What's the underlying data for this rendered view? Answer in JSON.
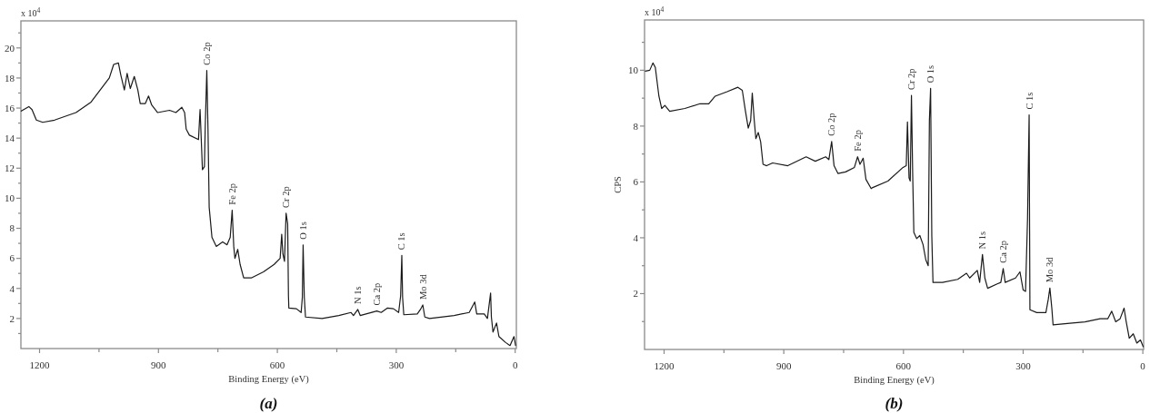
{
  "chart_data": [
    {
      "type": "line",
      "title": "(a)",
      "xlabel": "Binding Energy (eV)",
      "color": "#1a1a1a",
      "annotations": [
        "x 10$^{4}$",
        {
          "text": "Co 2p",
          "x": 778,
          "y": 18.5
        },
        {
          "text": "Fe 2p",
          "x": 714,
          "y": 9.2
        },
        {
          "text": "Cr 2p",
          "x": 578,
          "y": 9.0
        },
        {
          "text": "O 1s",
          "x": 535,
          "y": 6.9
        },
        {
          "text": "N 1s",
          "x": 397,
          "y": 2.6
        },
        {
          "text": "Ca 2p",
          "x": 349,
          "y": 2.5
        },
        {
          "text": "C 1s",
          "x": 286,
          "y": 6.2
        },
        {
          "text": "Mo 3d",
          "x": 233,
          "y": 2.9
        }
      ],
      "x": [
        1246,
        1227,
        1219,
        1208,
        1192,
        1162,
        1108,
        1070,
        1047,
        1024,
        1013,
        1001,
        995,
        986,
        979,
        971,
        961,
        952,
        946,
        933,
        925,
        917,
        902,
        872,
        856,
        841,
        834,
        830,
        822,
        799,
        795,
        793,
        789,
        784,
        782,
        778,
        775,
        772,
        765,
        754,
        738,
        727,
        719,
        714,
        710,
        707,
        700,
        694,
        685,
        666,
        635,
        608,
        593,
        589,
        586,
        582,
        578,
        574,
        572,
        571,
        552,
        540,
        537,
        535,
        532,
        529,
        487,
        445,
        414,
        408,
        397,
        391,
        349,
        338,
        322,
        307,
        294,
        289,
        286,
        284,
        281,
        247,
        239,
        233,
        228,
        216,
        154,
        116,
        102,
        97,
        78,
        70,
        62,
        60,
        56,
        47,
        41,
        24,
        13,
        3,
        -1
      ],
      "values": [
        15.8,
        16.1,
        15.9,
        15.2,
        15.05,
        15.2,
        15.7,
        16.4,
        17.2,
        18.0,
        18.9,
        19.0,
        18.2,
        17.2,
        18.3,
        17.3,
        18.1,
        17.2,
        16.3,
        16.3,
        16.8,
        16.2,
        15.7,
        15.85,
        15.7,
        16.05,
        15.7,
        14.6,
        14.2,
        13.9,
        15.9,
        14.6,
        11.9,
        12.1,
        14.7,
        18.5,
        14.6,
        9.4,
        7.4,
        6.8,
        7.1,
        6.9,
        7.4,
        9.2,
        6.8,
        6.0,
        6.6,
        5.6,
        4.7,
        4.7,
        5.1,
        5.6,
        6.0,
        7.6,
        6.3,
        5.8,
        9.0,
        8.3,
        3.5,
        2.7,
        2.65,
        2.4,
        3.4,
        6.9,
        3.4,
        2.1,
        2.0,
        2.2,
        2.4,
        2.2,
        2.6,
        2.2,
        2.5,
        2.4,
        2.7,
        2.65,
        2.4,
        3.5,
        6.2,
        3.4,
        2.25,
        2.3,
        2.6,
        2.9,
        2.1,
        2.0,
        2.2,
        2.4,
        3.1,
        2.3,
        2.3,
        2.0,
        3.7,
        2.1,
        1.1,
        1.7,
        0.8,
        0.4,
        0.2,
        0.8,
        0.2
      ],
      "xlim": [
        1247,
        -3
      ],
      "ylim": [
        0,
        21.8
      ],
      "xticks": [
        1200,
        {
          "value": 1050,
          "label": null
        },
        900,
        {
          "value": 750,
          "label": null
        },
        600,
        {
          "value": 450,
          "label": null
        },
        300,
        {
          "value": 150,
          "label": null
        },
        0
      ],
      "yticks": [
        {
          "value": 1,
          "label": null
        },
        2,
        {
          "value": 3,
          "label": null
        },
        4,
        {
          "value": 5,
          "label": null
        },
        6,
        {
          "value": 7,
          "label": null
        },
        8,
        {
          "value": 9,
          "label": null
        },
        10,
        {
          "value": 11,
          "label": null
        },
        12,
        {
          "value": 13,
          "label": null
        },
        14,
        {
          "value": 15,
          "label": null
        },
        16,
        {
          "value": 17,
          "label": null
        },
        18,
        {
          "value": 19,
          "label": null
        },
        20,
        {
          "value": 21,
          "label": null
        }
      ]
    },
    {
      "type": "line",
      "title": "(b)",
      "xlabel": "Binding Energy (eV)",
      "ylabel": "CPS",
      "color": "#1a1a1a",
      "annotations": [
        "x 10$^{4}$",
        {
          "text": "Co 2p",
          "x": 780,
          "y": 7.45
        },
        {
          "text": "Fe 2p",
          "x": 715,
          "y": 6.9
        },
        {
          "text": "Cr 2p",
          "x": 580,
          "y": 9.1
        },
        {
          "text": "O 1s",
          "x": 532,
          "y": 9.35
        },
        {
          "text": "N 1s",
          "x": 402,
          "y": 3.4
        },
        {
          "text": "Ca 2p",
          "x": 350,
          "y": 2.9
        },
        {
          "text": "C 1s",
          "x": 285,
          "y": 8.4
        },
        {
          "text": "Mo 3d",
          "x": 233,
          "y": 2.2
        }
      ],
      "x": [
        1247,
        1236,
        1228,
        1222,
        1213,
        1206,
        1198,
        1186,
        1148,
        1110,
        1088,
        1072,
        1042,
        1015,
        1004,
        996,
        989,
        983,
        979,
        974,
        970,
        964,
        958,
        952,
        943,
        928,
        890,
        844,
        821,
        795,
        787,
        780,
        774,
        764,
        745,
        723,
        715,
        709,
        701,
        694,
        681,
        677,
        639,
        601,
        593,
        590,
        586,
        583,
        580,
        577,
        574,
        567,
        559,
        551,
        544,
        538,
        535,
        532,
        529,
        526,
        502,
        464,
        442,
        434,
        415,
        409,
        402,
        396,
        389,
        365,
        356,
        350,
        345,
        319,
        308,
        300,
        294,
        289,
        285,
        283,
        266,
        243,
        237,
        233,
        228,
        225,
        183,
        145,
        107,
        88,
        78,
        68,
        57,
        47,
        42,
        34,
        24,
        15,
        6,
        -1
      ],
      "values": [
        9.97,
        10.0,
        10.26,
        10.1,
        9.07,
        8.63,
        8.74,
        8.53,
        8.63,
        8.8,
        8.8,
        9.07,
        9.23,
        9.39,
        9.28,
        8.53,
        7.93,
        8.2,
        9.18,
        8.2,
        7.55,
        7.77,
        7.44,
        6.63,
        6.58,
        6.68,
        6.58,
        6.9,
        6.74,
        6.9,
        6.8,
        7.45,
        6.58,
        6.3,
        6.36,
        6.52,
        6.9,
        6.63,
        6.85,
        6.09,
        5.76,
        5.8,
        6.03,
        6.52,
        6.58,
        8.15,
        6.14,
        6.03,
        9.1,
        6.36,
        4.19,
        3.97,
        4.08,
        3.76,
        3.21,
        3.0,
        8.2,
        9.35,
        4.08,
        2.4,
        2.4,
        2.51,
        2.73,
        2.56,
        2.83,
        2.4,
        3.4,
        2.56,
        2.19,
        2.35,
        2.4,
        2.9,
        2.4,
        2.56,
        2.78,
        2.13,
        2.08,
        4.68,
        8.4,
        1.42,
        1.32,
        1.32,
        1.8,
        2.2,
        1.46,
        0.88,
        0.94,
        0.99,
        1.1,
        1.1,
        1.37,
        0.99,
        1.1,
        1.48,
        1.02,
        0.4,
        0.56,
        0.23,
        0.34,
        0.1
      ],
      "xlim": [
        1249,
        -2
      ],
      "ylim": [
        0,
        11.8
      ],
      "xticks": [
        1200,
        {
          "value": 1050,
          "label": null
        },
        900,
        {
          "value": 750,
          "label": null
        },
        600,
        {
          "value": 450,
          "label": null
        },
        300,
        {
          "value": 150,
          "label": null
        },
        0
      ],
      "yticks": [
        {
          "value": 1,
          "label": null
        },
        2,
        {
          "value": 3,
          "label": null
        },
        4,
        {
          "value": 5,
          "label": null
        },
        6,
        {
          "value": 7,
          "label": null
        },
        8,
        {
          "value": 9,
          "label": null
        },
        10,
        {
          "value": 11,
          "label": null
        }
      ]
    }
  ]
}
